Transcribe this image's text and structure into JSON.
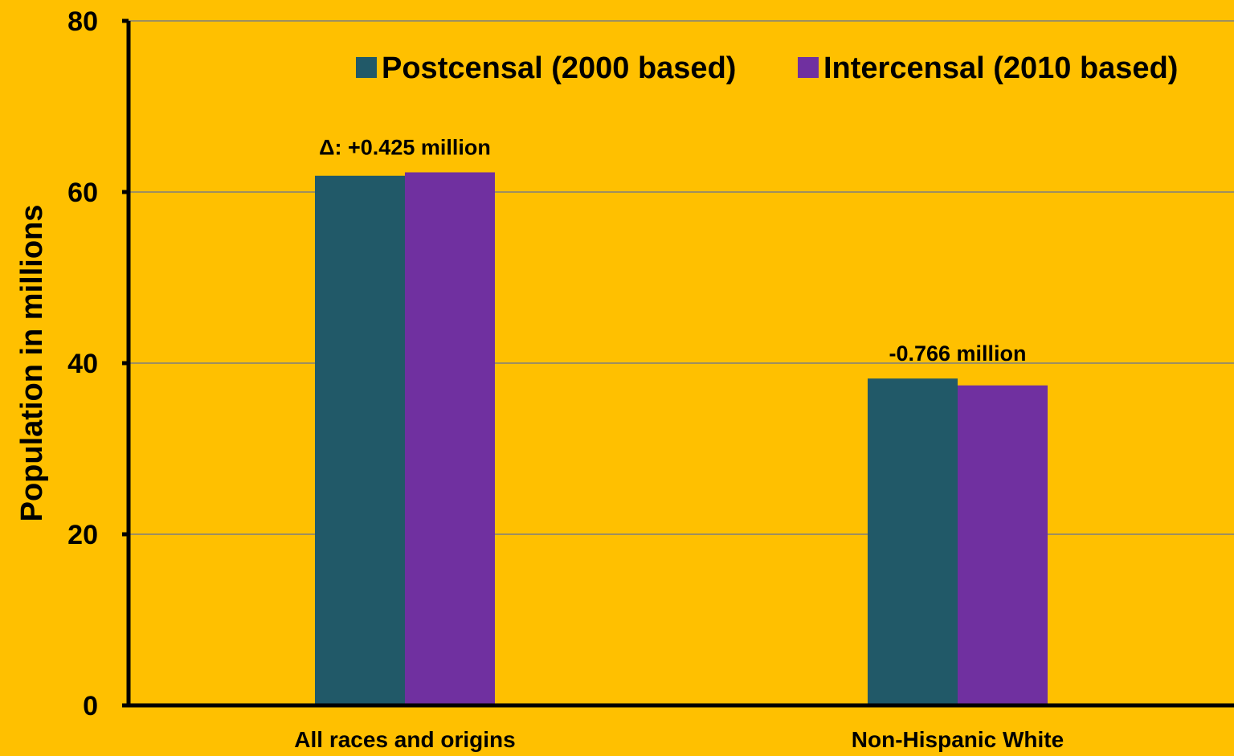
{
  "chart_data": {
    "type": "bar",
    "title": "",
    "xlabel": "",
    "ylabel": "Population in millions",
    "ylim": [
      0,
      80
    ],
    "yticks": [
      0,
      20,
      40,
      60,
      80
    ],
    "categories": [
      "All races and origins",
      "Non-Hispanic White"
    ],
    "series": [
      {
        "name": "Postcensal (2000 based)",
        "values": [
          61.9,
          38.2
        ],
        "color": "#215968"
      },
      {
        "name": "Intercensal (2010 based)",
        "values": [
          62.3,
          37.4
        ],
        "color": "#7030A0"
      }
    ],
    "annotations": [
      "Δ: +0.425 million",
      "-0.766 million"
    ],
    "grid": true,
    "legend": "top-right",
    "background": "#FFC000"
  }
}
